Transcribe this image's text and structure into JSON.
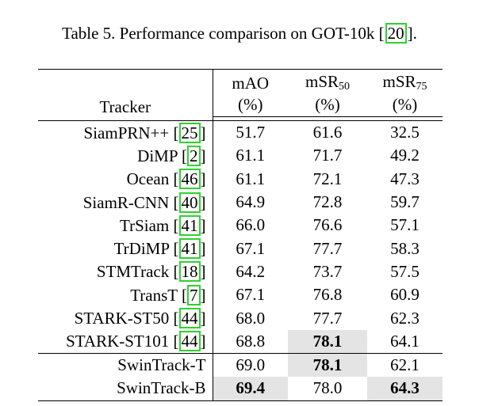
{
  "caption": {
    "prefix": "Table 5. Performance comparison on GOT-10k [",
    "cite": "20",
    "suffix": "]."
  },
  "header": {
    "tracker": "Tracker",
    "col1_line1": "mAO",
    "col1_line2": "(%)",
    "col2_main": "mSR",
    "col2_sub": "50",
    "col2_line2": "(%)",
    "col3_main": "mSR",
    "col3_sub": "75",
    "col3_line2": "(%)"
  },
  "rows": [
    {
      "name": "SiamPRN++",
      "cite": "25",
      "mao": "51.7",
      "msr50": "61.6",
      "msr75": "32.5"
    },
    {
      "name": "DiMP",
      "cite": "2",
      "mao": "61.1",
      "msr50": "71.7",
      "msr75": "49.2"
    },
    {
      "name": "Ocean",
      "cite": "46",
      "mao": "61.1",
      "msr50": "72.1",
      "msr75": "47.3"
    },
    {
      "name": "SiamR-CNN",
      "cite": "40",
      "mao": "64.9",
      "msr50": "72.8",
      "msr75": "59.7"
    },
    {
      "name": "TrSiam",
      "cite": "41",
      "mao": "66.0",
      "msr50": "76.6",
      "msr75": "57.1"
    },
    {
      "name": "TrDiMP",
      "cite": "41",
      "mao": "67.1",
      "msr50": "77.7",
      "msr75": "58.3"
    },
    {
      "name": "STMTrack",
      "cite": "18",
      "mao": "64.2",
      "msr50": "73.7",
      "msr75": "57.5"
    },
    {
      "name": "TransT",
      "cite": "7",
      "mao": "67.1",
      "msr50": "76.8",
      "msr75": "60.9"
    },
    {
      "name": "STARK-ST50",
      "cite": "44",
      "mao": "68.0",
      "msr50": "77.7",
      "msr75": "62.3"
    },
    {
      "name": "STARK-ST101",
      "cite": "44",
      "mao": "68.8",
      "msr50": "78.1",
      "msr75": "64.1"
    },
    {
      "name": "SwinTrack-T",
      "cite": "",
      "mao": "69.0",
      "msr50": "78.1",
      "msr75": "62.1"
    },
    {
      "name": "SwinTrack-B",
      "cite": "",
      "mao": "69.4",
      "msr50": "78.0",
      "msr75": "64.3"
    }
  ],
  "highlight_color": "#e4e4e4",
  "cite_box_color": "#2fd12f"
}
